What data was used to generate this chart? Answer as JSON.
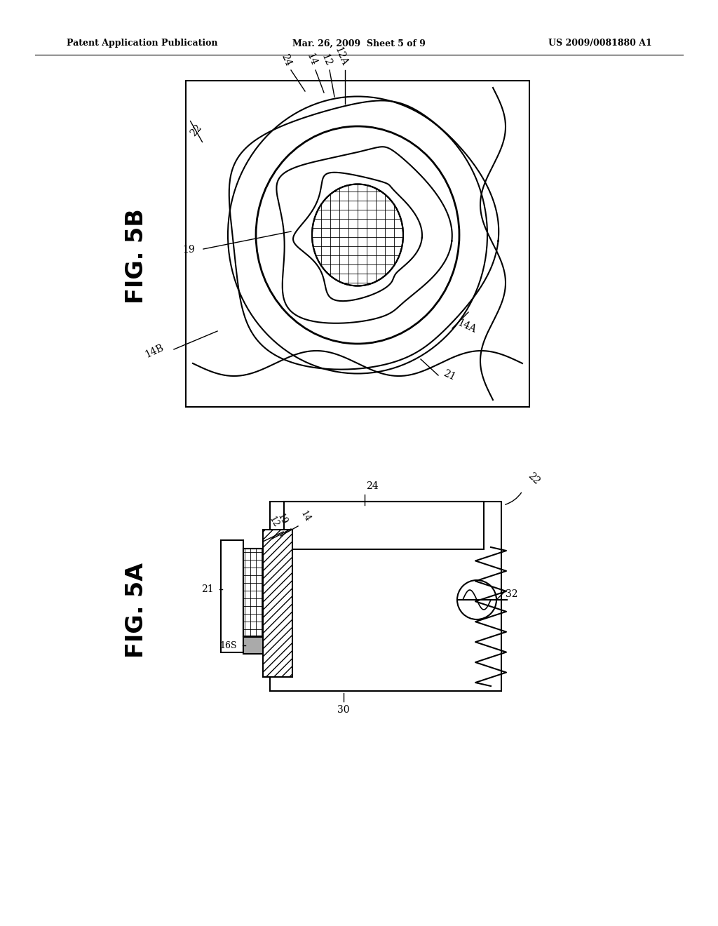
{
  "bg_color": "#ffffff",
  "line_color": "#000000",
  "header_left": "Patent Application Publication",
  "header_mid": "Mar. 26, 2009  Sheet 5 of 9",
  "header_right": "US 2009/0081880 A1",
  "fig5b_label": "FIG. 5B",
  "fig5a_label": "FIG. 5A"
}
